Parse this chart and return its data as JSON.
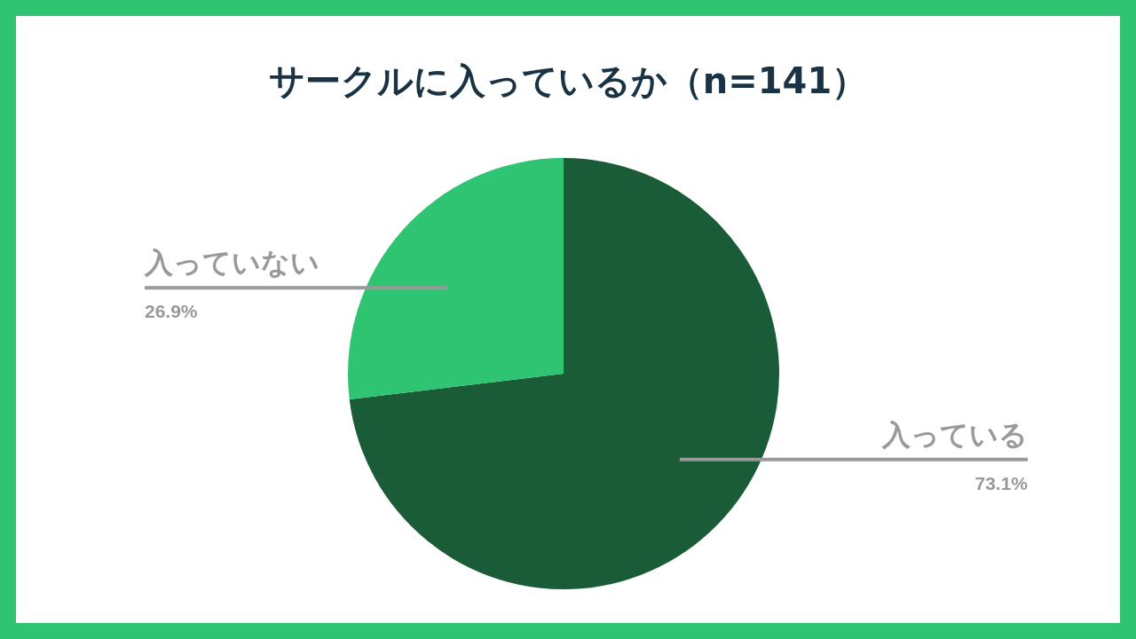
{
  "chart_data": {
    "type": "pie",
    "title": "サークルに入っているか（n=141）",
    "categories": [
      "入っている",
      "入っていない"
    ],
    "values": [
      73.1,
      26.9
    ],
    "colors": [
      "#1a5c38",
      "#2ec472"
    ],
    "value_labels": [
      "73.1%",
      "26.9%"
    ],
    "legend": false
  }
}
